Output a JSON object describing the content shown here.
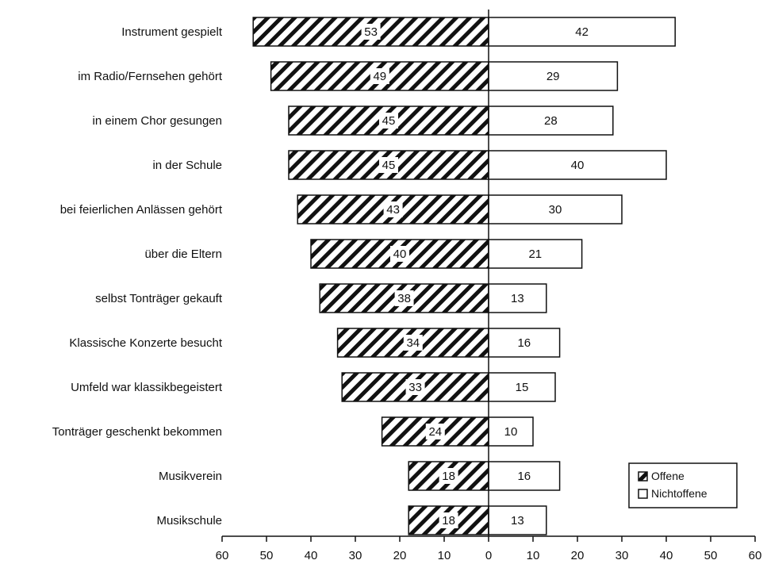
{
  "chart_data": {
    "type": "bar",
    "orientation": "horizontal-butterfly",
    "categories": [
      "Instrument gespielt",
      "im Radio/Fernsehen gehört",
      "in einem Chor gesungen",
      "in der Schule",
      "bei feierlichen Anlässen gehört",
      "über die Eltern",
      "selbst Tonträger gekauft",
      "Klassische Konzerte besucht",
      "Umfeld war klassikbegeistert",
      "Tonträger geschenkt bekommen",
      "Musikverein",
      "Musikschule"
    ],
    "series": [
      {
        "name": "Offene",
        "side": "left",
        "pattern": "hatched",
        "values": [
          53,
          49,
          45,
          45,
          43,
          40,
          38,
          34,
          33,
          24,
          18,
          18
        ]
      },
      {
        "name": "Nichtoffene",
        "side": "right",
        "pattern": "white",
        "values": [
          42,
          29,
          28,
          40,
          30,
          21,
          13,
          16,
          15,
          10,
          16,
          13
        ]
      }
    ],
    "xlim": [
      -60,
      60
    ],
    "xticks": [
      -60,
      -50,
      -40,
      -30,
      -20,
      -10,
      0,
      10,
      20,
      30,
      40,
      50,
      60
    ],
    "xtick_labels": [
      "60",
      "50",
      "40",
      "30",
      "20",
      "10",
      "0",
      "10",
      "20",
      "30",
      "40",
      "50",
      "60"
    ],
    "title": "",
    "xlabel": "",
    "ylabel": "",
    "grid": false,
    "legend": "bottom-right",
    "colors": {
      "ink": "#111111",
      "background": "#ffffff"
    }
  }
}
